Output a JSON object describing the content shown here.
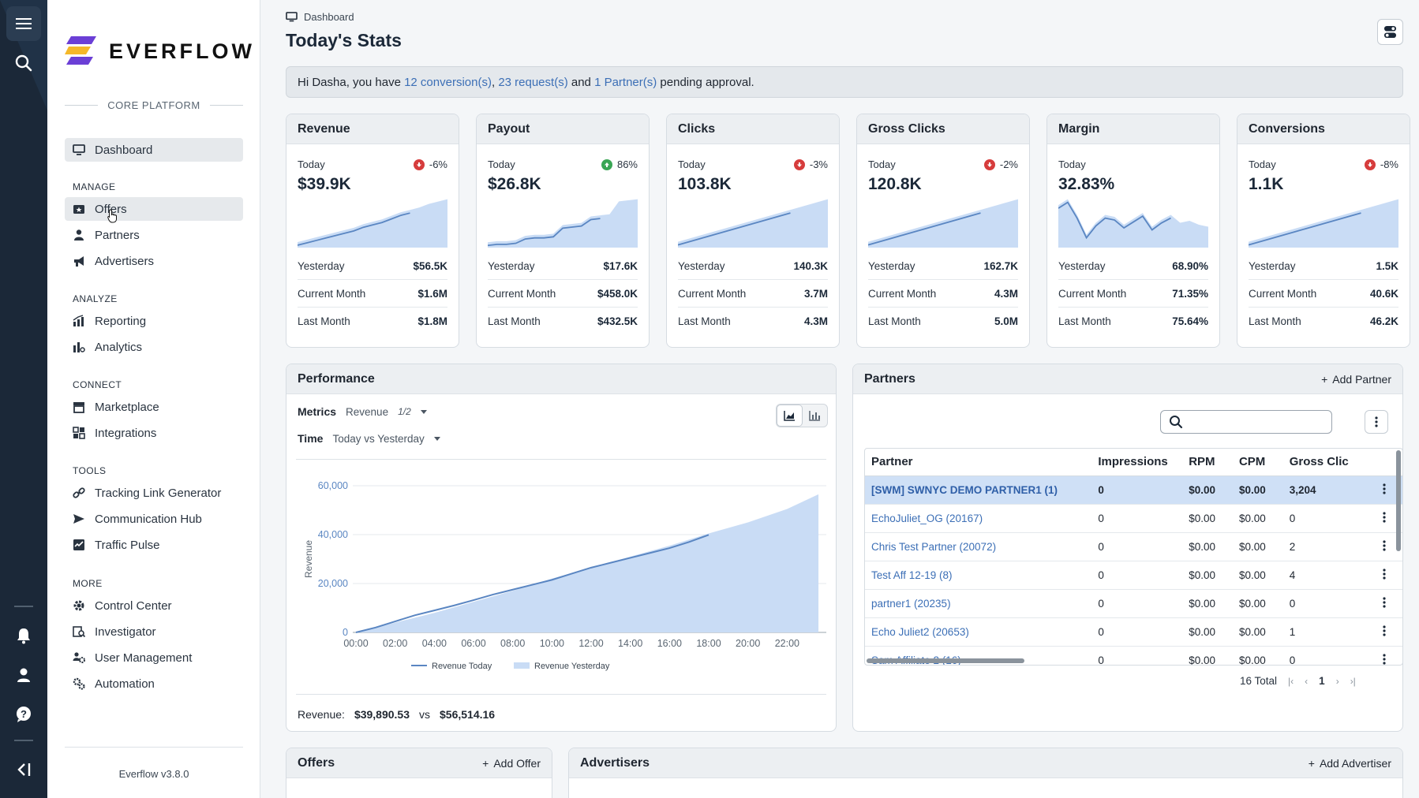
{
  "app": {
    "brand": "EVERFLOW",
    "platform": "CORE PLATFORM",
    "version": "Everflow v3.8.0"
  },
  "sidebar": {
    "dashboard": "Dashboard",
    "sections": {
      "manage": "MANAGE",
      "analyze": "ANALYZE",
      "connect": "CONNECT",
      "tools": "TOOLS",
      "more": "MORE"
    },
    "items": {
      "offers": "Offers",
      "partners": "Partners",
      "advertisers": "Advertisers",
      "reporting": "Reporting",
      "analytics": "Analytics",
      "marketplace": "Marketplace",
      "integrations": "Integrations",
      "tracking": "Tracking Link Generator",
      "comm": "Communication Hub",
      "pulse": "Traffic Pulse",
      "control": "Control Center",
      "investigator": "Investigator",
      "users": "User Management",
      "automation": "Automation"
    }
  },
  "header": {
    "breadcrumb": "Dashboard",
    "title": "Today's Stats"
  },
  "notice": {
    "prefix": "Hi Dasha, you have ",
    "conversions": "12 conversion(s)",
    "comma": ", ",
    "requests": "23 request(s)",
    "and": " and ",
    "partners": "1 Partner(s)",
    "suffix": " pending approval."
  },
  "stats": [
    {
      "title": "Revenue",
      "today_label": "Today",
      "delta": "-6%",
      "trend": "down",
      "value": "$39.9K",
      "spark": [
        2,
        4,
        6,
        8,
        10,
        12,
        14,
        17,
        19,
        21,
        24,
        27,
        29,
        31,
        34,
        36,
        38
      ],
      "yesterday_label": "Yesterday",
      "yesterday": "$56.5K",
      "month_label": "Current Month",
      "month": "$1.6M",
      "last_label": "Last Month",
      "last": "$1.8M"
    },
    {
      "title": "Payout",
      "today_label": "Today",
      "delta": "86%",
      "trend": "up",
      "value": "$26.8K",
      "spark": [
        2,
        3,
        3,
        4,
        8,
        9,
        9,
        10,
        18,
        19,
        20,
        26,
        27,
        28,
        40,
        41,
        42
      ],
      "yesterday_label": "Yesterday",
      "yesterday": "$17.6K",
      "month_label": "Current Month",
      "month": "$458.0K",
      "last_label": "Last Month",
      "last": "$432.5K"
    },
    {
      "title": "Clicks",
      "today_label": "Today",
      "delta": "-3%",
      "trend": "down",
      "value": "103.8K",
      "spark": [
        2,
        4,
        6,
        8,
        10,
        12,
        14,
        16,
        18,
        20,
        22,
        24,
        26,
        28,
        30,
        32,
        34
      ],
      "yesterday_label": "Yesterday",
      "yesterday": "140.3K",
      "month_label": "Current Month",
      "month": "3.7M",
      "last_label": "Last Month",
      "last": "4.3M"
    },
    {
      "title": "Gross Clicks",
      "today_label": "Today",
      "delta": "-2%",
      "trend": "down",
      "value": "120.8K",
      "spark": [
        2,
        4,
        6,
        8,
        10,
        12,
        14,
        16,
        18,
        20,
        22,
        24,
        26,
        28,
        30,
        32,
        34
      ],
      "yesterday_label": "Yesterday",
      "yesterday": "162.7K",
      "month_label": "Current Month",
      "month": "4.3M",
      "last_label": "Last Month",
      "last": "5.0M"
    },
    {
      "title": "Margin",
      "today_label": "Today",
      "delta": "",
      "trend": "none",
      "value": "32.83%",
      "spark": [
        40,
        46,
        30,
        10,
        22,
        30,
        28,
        20,
        26,
        32,
        18,
        25,
        30,
        22,
        24,
        20,
        18
      ],
      "yesterday_label": "Yesterday",
      "yesterday": "68.90%",
      "month_label": "Current Month",
      "month": "71.35%",
      "last_label": "Last Month",
      "last": "75.64%"
    },
    {
      "title": "Conversions",
      "today_label": "Today",
      "delta": "-8%",
      "trend": "down",
      "value": "1.1K",
      "spark": [
        2,
        4,
        6,
        8,
        10,
        12,
        14,
        16,
        18,
        20,
        22,
        24,
        26,
        28,
        30,
        32,
        34
      ],
      "yesterday_label": "Yesterday",
      "yesterday": "1.5K",
      "month_label": "Current Month",
      "month": "40.6K",
      "last_label": "Last Month",
      "last": "46.2K"
    }
  ],
  "performance": {
    "title": "Performance",
    "metrics_label": "Metrics",
    "metrics_value": "Revenue",
    "metrics_count": "1/2",
    "time_label": "Time",
    "time_value": "Today vs Yesterday",
    "footer_label": "Revenue:",
    "footer_today": "$39,890.53",
    "footer_vs": "vs",
    "footer_yesterday": "$56,514.16",
    "chart_data": {
      "type": "area",
      "ylabel": "Revenue",
      "ylim": [
        0,
        60000
      ],
      "yticks": [
        "0",
        "20,000",
        "40,000",
        "60,000"
      ],
      "yticks_values": [
        0,
        20000,
        40000,
        60000
      ],
      "xticks": [
        "00:00",
        "02:00",
        "04:00",
        "06:00",
        "08:00",
        "10:00",
        "12:00",
        "14:00",
        "16:00",
        "18:00",
        "20:00",
        "22:00"
      ],
      "xlim": [
        0,
        24
      ],
      "series": [
        {
          "name": "Revenue Today",
          "style": "line",
          "color": "#5a86c2",
          "x": [
            0,
            1,
            2,
            3,
            4,
            5,
            6,
            7,
            8,
            9,
            10,
            11,
            12,
            13,
            14,
            15,
            16,
            17,
            18
          ],
          "y": [
            0,
            2000,
            4500,
            7000,
            9000,
            11000,
            13200,
            15500,
            17500,
            19500,
            21500,
            24000,
            26500,
            28500,
            30500,
            32500,
            34500,
            37000,
            39900
          ]
        },
        {
          "name": "Revenue Yesterday",
          "style": "area",
          "color": "#c9dcf5",
          "x": [
            0,
            2,
            4,
            6,
            8,
            10,
            12,
            14,
            16,
            18,
            20,
            22,
            23.6
          ],
          "y": [
            0,
            4000,
            8000,
            12500,
            17000,
            22000,
            26500,
            31000,
            35500,
            40500,
            45000,
            50500,
            56500
          ]
        }
      ]
    }
  },
  "partners": {
    "title": "Partners",
    "add_label": "Add Partner",
    "search_placeholder": "",
    "columns": [
      "Partner",
      "Impressions",
      "RPM",
      "CPM",
      "Gross Clic"
    ],
    "rows": [
      [
        "[SWM] SWNYC DEMO PARTNER1 (1)",
        "0",
        "$0.00",
        "$0.00",
        "3,204"
      ],
      [
        "EchoJuliet_OG (20167)",
        "0",
        "$0.00",
        "$0.00",
        "0"
      ],
      [
        "Chris Test Partner (20072)",
        "0",
        "$0.00",
        "$0.00",
        "2"
      ],
      [
        "Test Aff 12-19 (8)",
        "0",
        "$0.00",
        "$0.00",
        "4"
      ],
      [
        "partner1 (20235)",
        "0",
        "$0.00",
        "$0.00",
        "0"
      ],
      [
        "Echo Juliet2 (20653)",
        "0",
        "$0.00",
        "$0.00",
        "1"
      ],
      [
        "Sam Affiliate 2 (16)",
        "0",
        "$0.00",
        "$0.00",
        "0"
      ]
    ],
    "total": "16 Total",
    "page": "1"
  },
  "offers": {
    "title": "Offers",
    "add_label": "Add Offer"
  },
  "advertisers": {
    "title": "Advertisers",
    "add_label": "Add Advertiser"
  }
}
